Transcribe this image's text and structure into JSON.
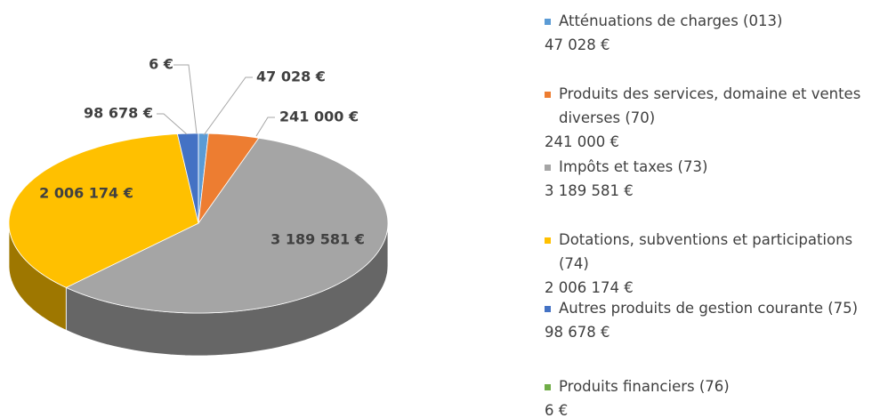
{
  "chart_data": {
    "type": "pie",
    "categories": [
      "Atténuations de charges (013)",
      "Produits des services, domaine et ventes diverses (70)",
      "Impôts et taxes (73)",
      "Dotations, subventions et participations (74)",
      "Autres produits de gestion courante (75)",
      "Produits financiers (76)"
    ],
    "values": [
      47028,
      241000,
      3189581,
      2006174,
      98678,
      6
    ],
    "value_labels": [
      "47 028 €",
      "241 000 €",
      "3 189 581 €",
      "2 006 174 €",
      "98 678 €",
      "6 €"
    ],
    "colors": [
      "#5b9bd5",
      "#ed7d31",
      "#a5a5a5",
      "#ffc000",
      "#4472c4",
      "#70ad47"
    ],
    "legend": "right"
  }
}
